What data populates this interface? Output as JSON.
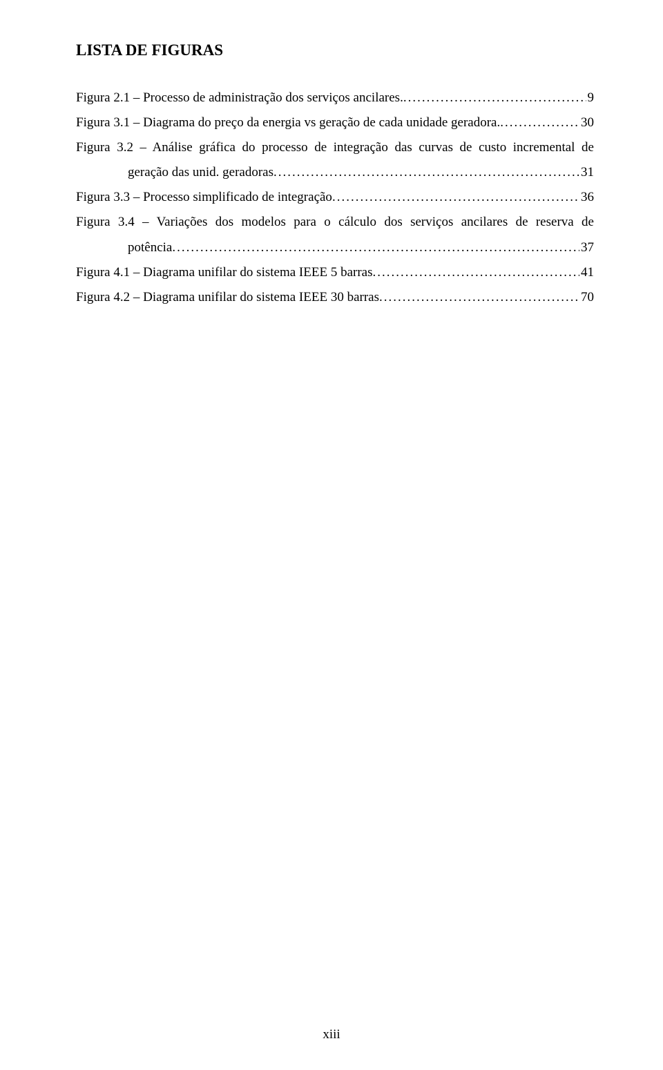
{
  "title": "LISTA DE FIGURAS",
  "entries": [
    {
      "lines": [
        {
          "text": "Figura 2.1 – Processo de administração dos serviços ancilares. ",
          "page": "9",
          "indented": false
        }
      ]
    },
    {
      "lines": [
        {
          "text": "Figura 3.1 – Diagrama do preço da energia vs geração de cada unidade geradora.",
          "page": "30",
          "indented": false
        }
      ]
    },
    {
      "lines": [
        {
          "text": "Figura 3.2 – Análise gráfica do processo de integração das curvas de custo incremental de",
          "page": null,
          "indented": false
        },
        {
          "text": "geração das unid. geradoras",
          "page": "31",
          "indented": true
        }
      ]
    },
    {
      "lines": [
        {
          "text": "Figura 3.3 – Processo simplificado de integração",
          "page": "36",
          "indented": false
        }
      ]
    },
    {
      "lines": [
        {
          "text": "Figura 3.4 – Variações dos modelos para o cálculo dos serviços ancilares de reserva de",
          "page": null,
          "indented": false
        },
        {
          "text": "potência",
          "page": "37",
          "indented": true
        }
      ]
    },
    {
      "lines": [
        {
          "text": "Figura 4.1 – Diagrama unifilar do sistema IEEE 5 barras",
          "page": "41",
          "indented": false
        }
      ]
    },
    {
      "lines": [
        {
          "text": "Figura 4.2 – Diagrama unifilar do sistema IEEE 30 barras",
          "page": "70",
          "indented": false
        }
      ]
    }
  ],
  "footer": "xiii"
}
